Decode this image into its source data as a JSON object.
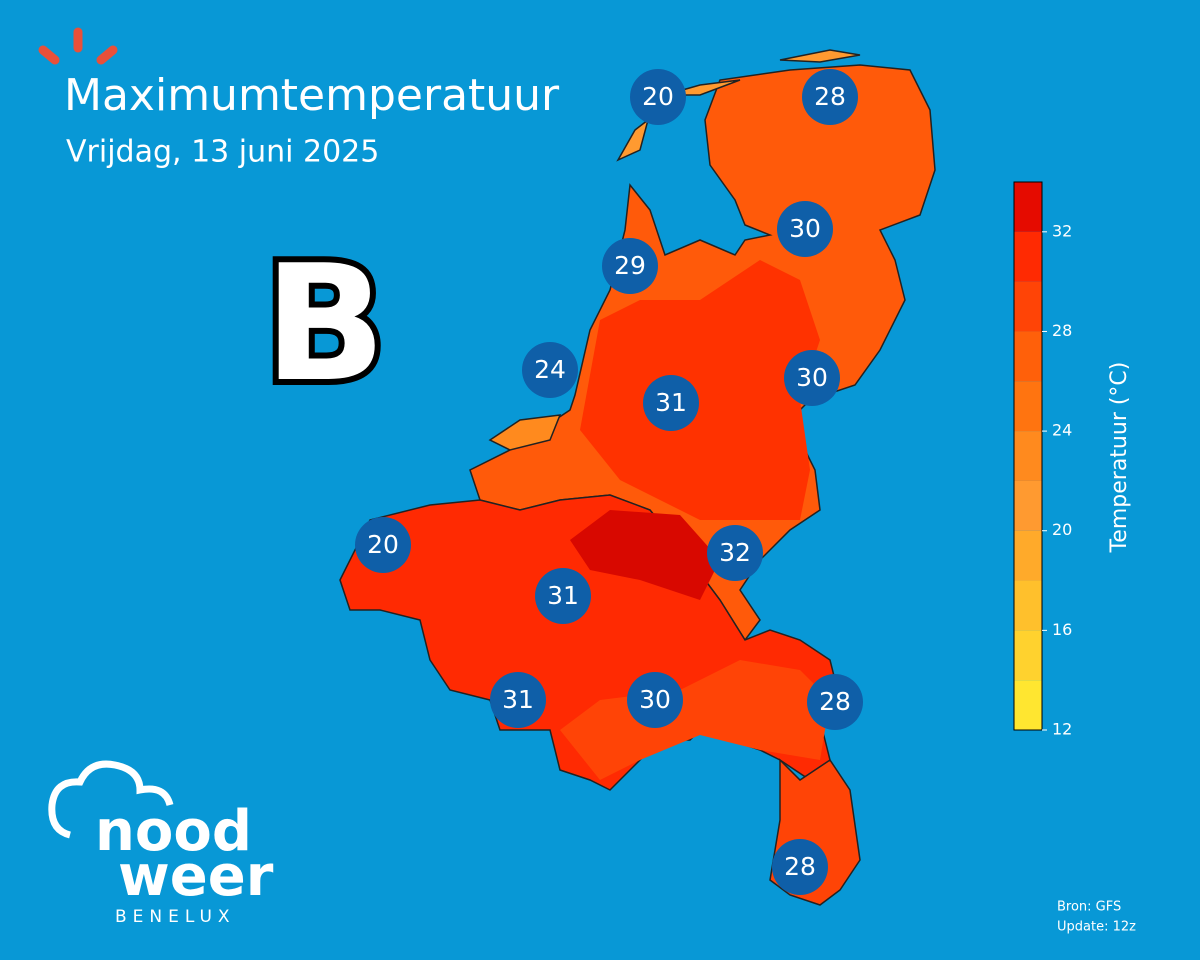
{
  "header": {
    "title": "Maximumtemperatuur",
    "subtitle": "Vrijdag, 13 juni 2025",
    "badge": "B"
  },
  "stations": [
    20,
    28,
    30,
    29,
    24,
    31,
    30,
    20,
    32,
    31,
    31,
    30,
    28,
    28
  ],
  "colorbar": {
    "label": "Temperatuur (°C)",
    "levels": [
      12,
      14,
      16,
      18,
      20,
      22,
      24,
      26,
      28,
      30,
      32,
      34
    ],
    "colors": [
      "#ffe630",
      "#ffd22e",
      "#ffc02c",
      "#ffaa2a",
      "#ff9a30",
      "#ff8a1e",
      "#ff7410",
      "#ff600a",
      "#ff4406",
      "#ff2a02",
      "#e50b00"
    ],
    "ticks": [
      12,
      16,
      20,
      24,
      28,
      32
    ]
  },
  "source": {
    "line1": "Bron: GFS",
    "line2": "Update: 12z"
  },
  "logo": {
    "word1": "nood",
    "word2": "weer",
    "word3": "BENELUX"
  }
}
